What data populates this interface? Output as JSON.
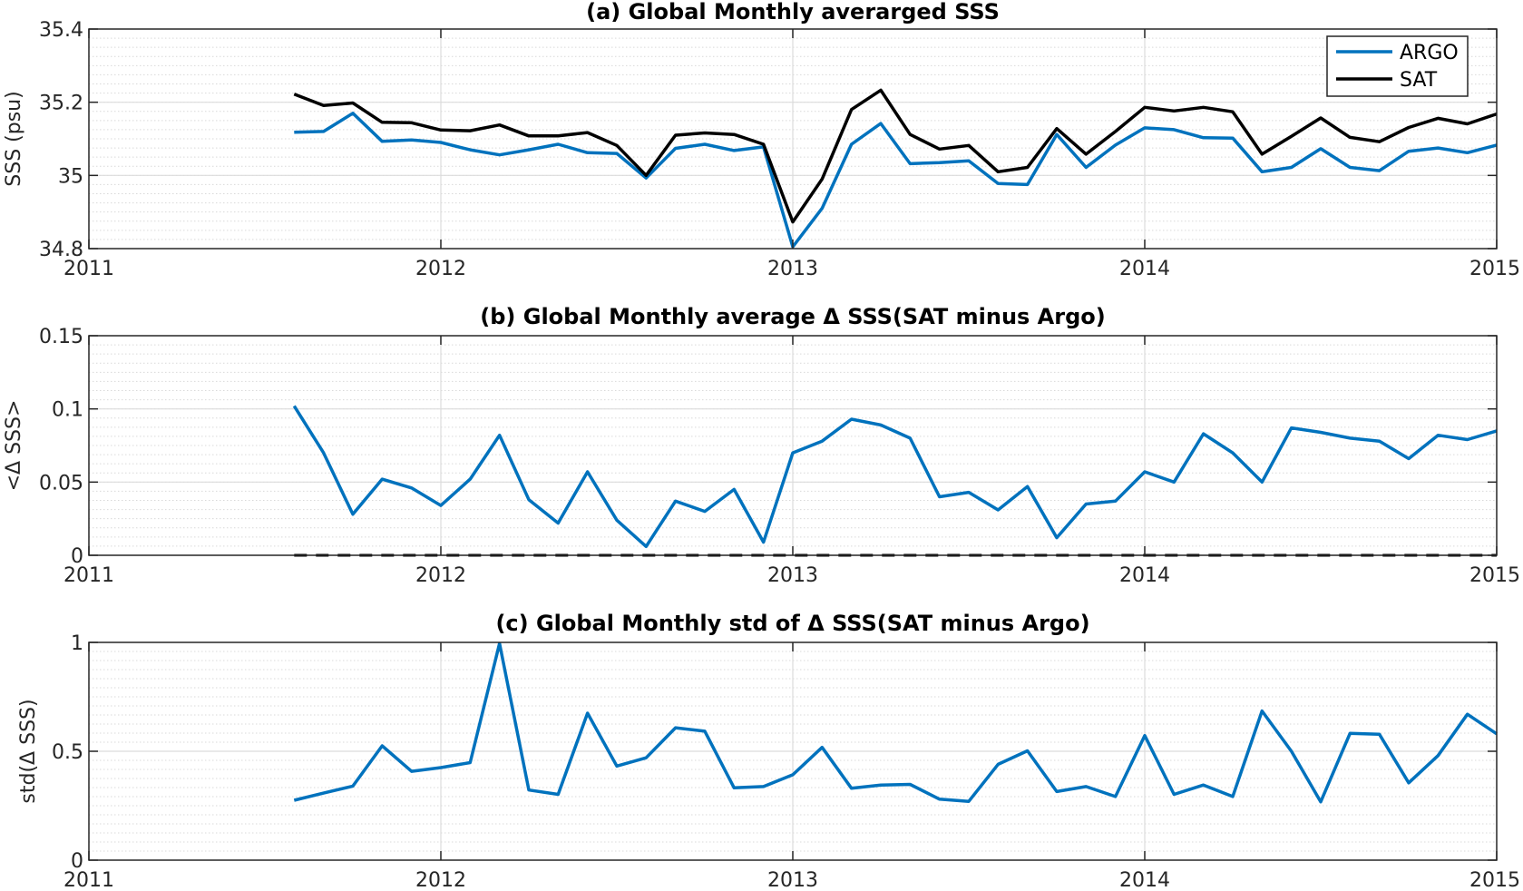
{
  "chart_data": [
    {
      "type": "line",
      "title": "(a) Global Monthly averarged SSS",
      "xlabel": "",
      "ylabel": "SSS (psu)",
      "xlim": [
        2011,
        2015
      ],
      "ylim": [
        34.8,
        35.4
      ],
      "x_ticks": [
        "2011",
        "2012",
        "2013",
        "2014",
        "2015"
      ],
      "y_ticks": [
        "34.8",
        "35",
        "35.2",
        "35.4"
      ],
      "grid": true,
      "legend": "top-right",
      "x": [
        "2011-08",
        "2011-09",
        "2011-10",
        "2011-11",
        "2011-12",
        "2012-01",
        "2012-02",
        "2012-03",
        "2012-04",
        "2012-05",
        "2012-06",
        "2012-07",
        "2012-08",
        "2012-09",
        "2012-10",
        "2012-11",
        "2012-12",
        "2013-01",
        "2013-02",
        "2013-03",
        "2013-04",
        "2013-05",
        "2013-06",
        "2013-07",
        "2013-08",
        "2013-09",
        "2013-10",
        "2013-11",
        "2013-12",
        "2014-01",
        "2014-02",
        "2014-03",
        "2014-04",
        "2014-05",
        "2014-06",
        "2014-07",
        "2014-08",
        "2014-09",
        "2014-10",
        "2014-11",
        "2014-12",
        "2015-01"
      ],
      "series": [
        {
          "name": "ARGO",
          "color": "#0072BD",
          "values": [
            35.118,
            35.12,
            35.17,
            35.093,
            35.097,
            35.09,
            35.07,
            35.056,
            35.07,
            35.085,
            35.062,
            35.06,
            34.993,
            35.074,
            35.085,
            35.068,
            35.078,
            34.805,
            34.91,
            35.085,
            35.142,
            35.032,
            35.035,
            35.04,
            34.978,
            34.975,
            35.112,
            35.022,
            35.083,
            35.13,
            35.125,
            35.103,
            35.102,
            35.01,
            35.022,
            35.073,
            35.022,
            35.013,
            35.066,
            35.075,
            35.062,
            35.083
          ]
        },
        {
          "name": "SAT",
          "color": "#000000",
          "values": [
            35.222,
            35.191,
            35.198,
            35.145,
            35.144,
            35.124,
            35.122,
            35.138,
            35.108,
            35.108,
            35.117,
            35.082,
            35.0,
            35.11,
            35.116,
            35.112,
            35.085,
            34.873,
            34.99,
            35.18,
            35.233,
            35.112,
            35.072,
            35.082,
            35.01,
            35.022,
            35.128,
            35.058,
            35.12,
            35.186,
            35.176,
            35.186,
            35.174,
            35.058,
            35.107,
            35.157,
            35.104,
            35.092,
            35.131,
            35.156,
            35.141,
            35.168
          ]
        }
      ]
    },
    {
      "type": "line",
      "title": "(b) Global Monthly average Δ SSS(SAT minus Argo)",
      "xlabel": "",
      "ylabel": "<Δ SSS>",
      "xlim": [
        2011,
        2015
      ],
      "ylim": [
        0,
        0.15
      ],
      "x_ticks": [
        "2011",
        "2012",
        "2013",
        "2014",
        "2015"
      ],
      "y_ticks": [
        "0",
        "0.05",
        "0.1",
        "0.15"
      ],
      "grid": true,
      "x": [
        "2011-08",
        "2011-09",
        "2011-10",
        "2011-11",
        "2011-12",
        "2012-01",
        "2012-02",
        "2012-03",
        "2012-04",
        "2012-05",
        "2012-06",
        "2012-07",
        "2012-08",
        "2012-09",
        "2012-10",
        "2012-11",
        "2012-12",
        "2013-01",
        "2013-02",
        "2013-03",
        "2013-04",
        "2013-05",
        "2013-06",
        "2013-07",
        "2013-08",
        "2013-09",
        "2013-10",
        "2013-11",
        "2013-12",
        "2014-01",
        "2014-02",
        "2014-03",
        "2014-04",
        "2014-05",
        "2014-06",
        "2014-07",
        "2014-08",
        "2014-09",
        "2014-10",
        "2014-11",
        "2014-12",
        "2015-01"
      ],
      "series": [
        {
          "color": "#0072BD",
          "values": [
            0.102,
            0.07,
            0.028,
            0.052,
            0.046,
            0.034,
            0.052,
            0.082,
            0.038,
            0.022,
            0.057,
            0.024,
            0.006,
            0.037,
            0.03,
            0.045,
            0.009,
            0.07,
            0.078,
            0.093,
            0.089,
            0.08,
            0.04,
            0.043,
            0.031,
            0.047,
            0.012,
            0.035,
            0.037,
            0.057,
            0.05,
            0.083,
            0.07,
            0.05,
            0.087,
            0.084,
            0.08,
            0.078,
            0.066,
            0.082,
            0.079,
            0.085
          ]
        },
        {
          "color": "#000000",
          "style": "dashed",
          "values": [
            0,
            0,
            0,
            0,
            0,
            0,
            0,
            0,
            0,
            0,
            0,
            0,
            0,
            0,
            0,
            0,
            0,
            0,
            0,
            0,
            0,
            0,
            0,
            0,
            0,
            0,
            0,
            0,
            0,
            0,
            0,
            0,
            0,
            0,
            0,
            0,
            0,
            0,
            0,
            0,
            0,
            0
          ]
        }
      ]
    },
    {
      "type": "line",
      "title": "(c) Global Monthly std of Δ SSS(SAT minus Argo)",
      "xlabel": "",
      "ylabel": "std(Δ SSS)",
      "xlim": [
        2011,
        2015
      ],
      "ylim": [
        0,
        1
      ],
      "x_ticks": [
        "2011",
        "2012",
        "2013",
        "2014",
        "2015"
      ],
      "y_ticks": [
        "0",
        "0.5",
        "1"
      ],
      "grid": true,
      "x": [
        "2011-08",
        "2011-09",
        "2011-10",
        "2011-11",
        "2011-12",
        "2012-01",
        "2012-02",
        "2012-03",
        "2012-04",
        "2012-05",
        "2012-06",
        "2012-07",
        "2012-08",
        "2012-09",
        "2012-10",
        "2012-11",
        "2012-12",
        "2013-01",
        "2013-02",
        "2013-03",
        "2013-04",
        "2013-05",
        "2013-06",
        "2013-07",
        "2013-08",
        "2013-09",
        "2013-10",
        "2013-11",
        "2013-12",
        "2014-01",
        "2014-02",
        "2014-03",
        "2014-04",
        "2014-05",
        "2014-06",
        "2014-07",
        "2014-08",
        "2014-09",
        "2014-10",
        "2014-11",
        "2014-12",
        "2015-01"
      ],
      "series": [
        {
          "color": "#0072BD",
          "values": [
            0.275,
            0.308,
            0.34,
            0.525,
            0.408,
            0.425,
            0.448,
            0.995,
            0.322,
            0.302,
            0.675,
            0.432,
            0.47,
            0.608,
            0.592,
            0.332,
            0.338,
            0.392,
            0.518,
            0.33,
            0.345,
            0.348,
            0.28,
            0.27,
            0.44,
            0.502,
            0.315,
            0.338,
            0.292,
            0.572,
            0.302,
            0.345,
            0.292,
            0.685,
            0.5,
            0.268,
            0.582,
            0.578,
            0.355,
            0.48,
            0.67,
            0.58
          ]
        }
      ]
    }
  ]
}
